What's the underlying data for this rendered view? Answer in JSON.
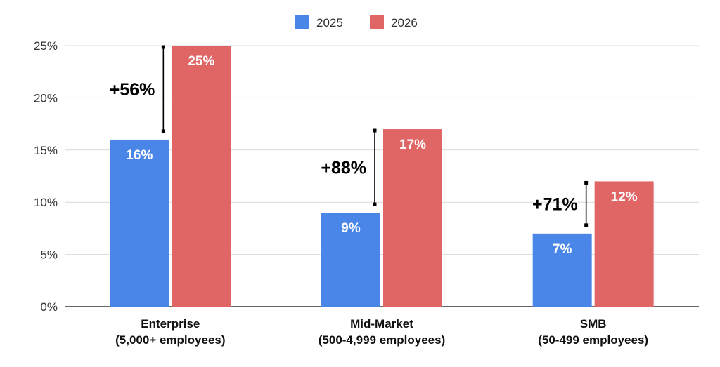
{
  "chart_data": {
    "type": "bar",
    "categories": [
      [
        "Enterprise",
        "(5,000+ employees)"
      ],
      [
        "Mid-Market",
        "(500-4,999 employees)"
      ],
      [
        "SMB",
        "(50-499 employees)"
      ]
    ],
    "series": [
      {
        "name": "2025",
        "color": "#4a86e8",
        "values": [
          16,
          9,
          7
        ],
        "labels": [
          "16%",
          "9%",
          "7%"
        ]
      },
      {
        "name": "2026",
        "color": "#e06666",
        "values": [
          25,
          17,
          12
        ],
        "labels": [
          "25%",
          "17%",
          "12%"
        ]
      }
    ],
    "ylim": [
      0,
      25
    ],
    "yticks": [
      0,
      5,
      10,
      15,
      20,
      25
    ],
    "ytick_labels": [
      "0%",
      "5%",
      "10%",
      "15%",
      "20%",
      "25%"
    ],
    "grid": true,
    "legend": "top-center",
    "annotations": [
      {
        "text": "+56%",
        "category": 0
      },
      {
        "text": "+88%",
        "category": 1
      },
      {
        "text": "+71%",
        "category": 2
      }
    ]
  }
}
